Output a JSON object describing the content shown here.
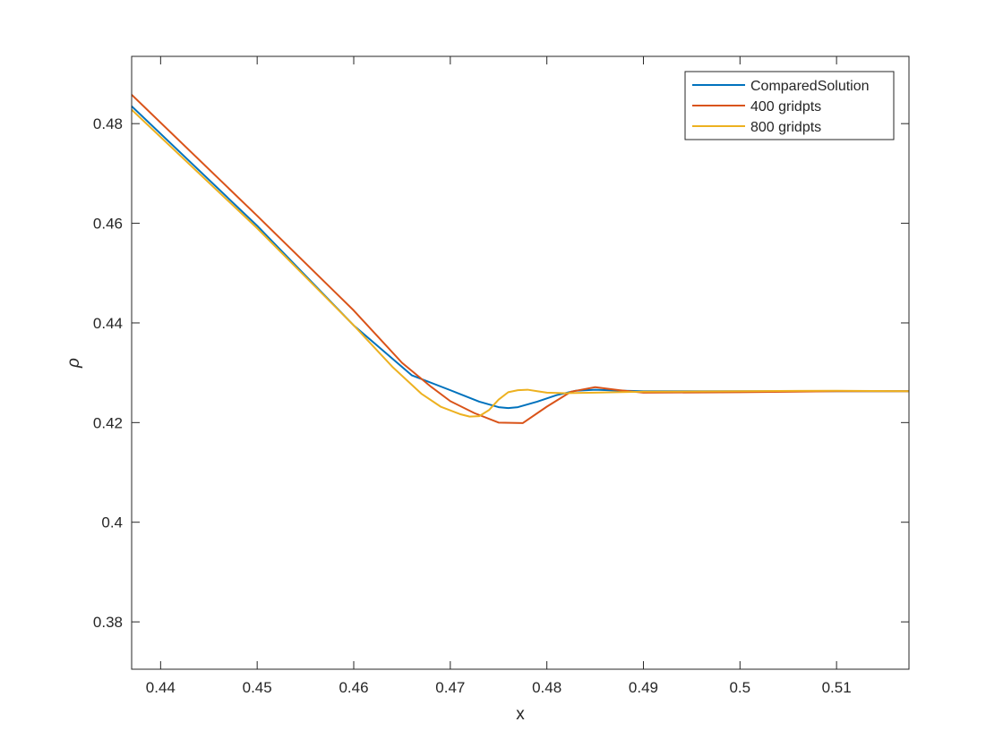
{
  "chart_data": {
    "type": "line",
    "title": "",
    "xlabel": "x",
    "ylabel": "ρ",
    "xlim": [
      0.437,
      0.5175
    ],
    "ylim": [
      0.3705,
      0.4935
    ],
    "grid": false,
    "legend_position": "top-right",
    "x_ticks": [
      0.44,
      0.45,
      0.46,
      0.47,
      0.48,
      0.49,
      0.5,
      0.51
    ],
    "x_tick_labels": [
      "0.44",
      "0.45",
      "0.46",
      "0.47",
      "0.48",
      "0.49",
      "0.5",
      "0.51"
    ],
    "y_ticks": [
      0.38,
      0.4,
      0.42,
      0.44,
      0.46,
      0.48
    ],
    "y_tick_labels": [
      "0.38",
      "0.4",
      "0.42",
      "0.44",
      "0.46",
      "0.48"
    ],
    "series": [
      {
        "name": "ComparedSolution",
        "color": "#0072BD",
        "x": [
          0.437,
          0.45,
          0.46,
          0.466,
          0.47,
          0.473,
          0.475,
          0.476,
          0.477,
          0.479,
          0.481,
          0.483,
          0.485,
          0.488,
          0.49,
          0.5,
          0.51,
          0.5175
        ],
        "y": [
          0.4835,
          0.4595,
          0.4395,
          0.4295,
          0.4265,
          0.4242,
          0.4231,
          0.4229,
          0.4231,
          0.4242,
          0.4255,
          0.4264,
          0.4266,
          0.4264,
          0.4263,
          0.4263,
          0.4263,
          0.4263
        ]
      },
      {
        "name": "400 gridpts",
        "color": "#D95319",
        "x": [
          0.437,
          0.45,
          0.46,
          0.465,
          0.468,
          0.47,
          0.4725,
          0.475,
          0.4775,
          0.48,
          0.4825,
          0.485,
          0.4875,
          0.49,
          0.5,
          0.51,
          0.5175
        ],
        "y": [
          0.4858,
          0.4615,
          0.4425,
          0.432,
          0.4272,
          0.4243,
          0.4219,
          0.42,
          0.4199,
          0.4232,
          0.4262,
          0.4271,
          0.4265,
          0.426,
          0.4261,
          0.4263,
          0.4263
        ]
      },
      {
        "name": "800 gridpts",
        "color": "#EDB120",
        "x": [
          0.437,
          0.45,
          0.46,
          0.464,
          0.467,
          0.469,
          0.471,
          0.472,
          0.473,
          0.474,
          0.475,
          0.476,
          0.477,
          0.478,
          0.479,
          0.48,
          0.482,
          0.485,
          0.49,
          0.5,
          0.51,
          0.5175
        ],
        "y": [
          0.4828,
          0.459,
          0.4395,
          0.4312,
          0.4258,
          0.4232,
          0.4217,
          0.4212,
          0.4213,
          0.4225,
          0.4246,
          0.4261,
          0.4265,
          0.4266,
          0.4263,
          0.426,
          0.4259,
          0.426,
          0.4262,
          0.4263,
          0.4264,
          0.4263
        ]
      }
    ]
  }
}
